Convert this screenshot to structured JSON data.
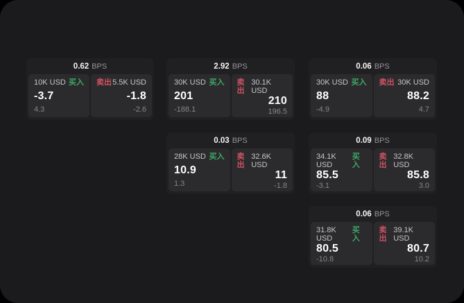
{
  "labels": {
    "bps_unit": "BPS",
    "buy": "买入",
    "sell": "卖出"
  },
  "colors": {
    "window_background": "#000000",
    "surface": "#1b1b1d",
    "card_background": "#202022",
    "tile_background": "#2b2b2d",
    "buy_green": "#3fa768",
    "sell_red": "#cf5263"
  },
  "cards": [
    {
      "bps": "0.62",
      "buy": {
        "amount": "10K USD",
        "price": "-3.7",
        "delta": "4.3"
      },
      "sell": {
        "amount": "5.5K USD",
        "price": "-1.8",
        "delta": "-2.6"
      }
    },
    {
      "bps": "2.92",
      "buy": {
        "amount": "30K USD",
        "price": "201",
        "delta": "-188.1"
      },
      "sell": {
        "amount": "30.1K USD",
        "price": "210",
        "delta": "196.5"
      }
    },
    {
      "bps": "0.06",
      "buy": {
        "amount": "30K USD",
        "price": "88",
        "delta": "-4.9"
      },
      "sell": {
        "amount": "30K USD",
        "price": "88.2",
        "delta": "4.7"
      }
    },
    {
      "bps": "0.03",
      "buy": {
        "amount": "28K USD",
        "price": "10.9",
        "delta": "1.3"
      },
      "sell": {
        "amount": "32.6K USD",
        "price": "11",
        "delta": "-1.8"
      }
    },
    {
      "bps": "0.09",
      "buy": {
        "amount": "34.1K USD",
        "price": "85.5",
        "delta": "-3.1"
      },
      "sell": {
        "amount": "32.8K USD",
        "price": "85.8",
        "delta": "3.0"
      }
    },
    {
      "bps": "0.06",
      "buy": {
        "amount": "31.8K USD",
        "price": "80.5",
        "delta": "-10.8"
      },
      "sell": {
        "amount": "39.1K USD",
        "price": "80.7",
        "delta": "10.2"
      }
    }
  ]
}
